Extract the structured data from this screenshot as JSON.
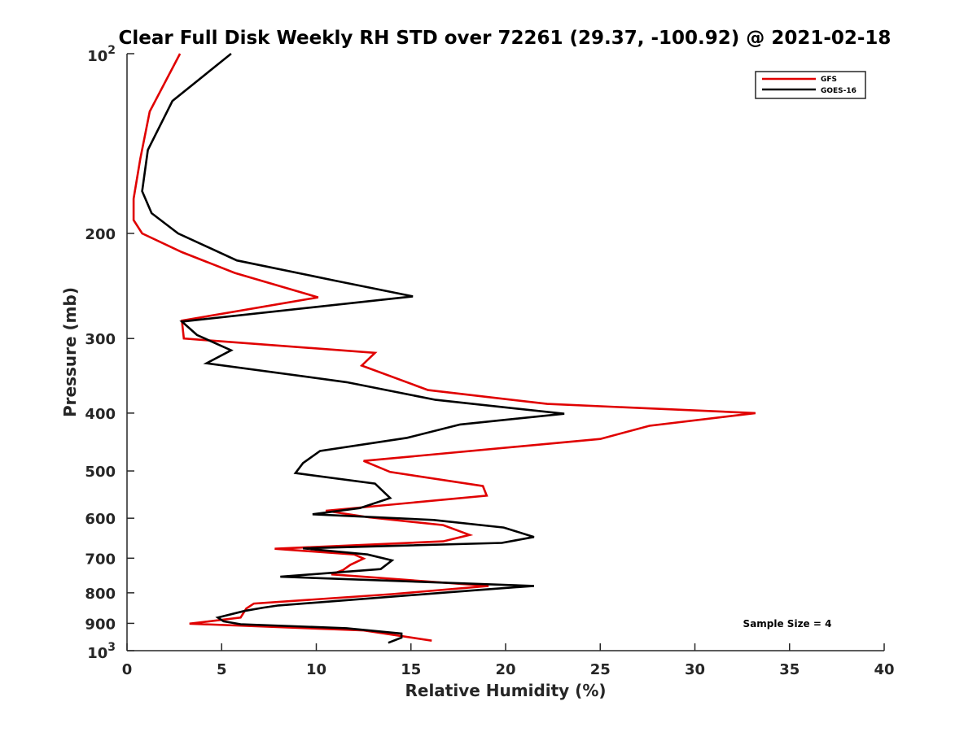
{
  "chart_data": {
    "type": "line",
    "title": "Clear Full Disk Weekly RH STD over 72261 (29.37, -100.92) @ 2021-02-18",
    "xlabel": "Relative Humidity (%)",
    "ylabel": "Pressure (mb)",
    "xlim": [
      0,
      40
    ],
    "ylim": [
      100,
      1000
    ],
    "yscale": "log",
    "y_reversed": true,
    "grid": false,
    "legend_position": "top-right",
    "x_ticks": [
      "0",
      "5",
      "10",
      "15",
      "20",
      "25",
      "30",
      "35",
      "40"
    ],
    "y_ticks": [
      {
        "value": 100,
        "base": "10",
        "exp": "2"
      },
      {
        "value": 200,
        "label": "200"
      },
      {
        "value": 300,
        "label": "300"
      },
      {
        "value": 400,
        "label": "400"
      },
      {
        "value": 500,
        "label": "500"
      },
      {
        "value": 600,
        "label": "600"
      },
      {
        "value": 700,
        "label": "700"
      },
      {
        "value": 800,
        "label": "800"
      },
      {
        "value": 900,
        "label": "900"
      },
      {
        "value": 1000,
        "base": "10",
        "exp": "3"
      }
    ],
    "annotation": "Sample Size = 4",
    "series": [
      {
        "name": "GFS",
        "color": "#e00000",
        "points": [
          [
            2.8,
            100
          ],
          [
            1.2,
            125
          ],
          [
            0.7,
            150
          ],
          [
            0.35,
            175
          ],
          [
            0.35,
            190
          ],
          [
            0.8,
            200
          ],
          [
            2.9,
            215
          ],
          [
            5.7,
            233
          ],
          [
            10.1,
            256
          ],
          [
            2.9,
            280
          ],
          [
            3.0,
            300
          ],
          [
            13.1,
            317
          ],
          [
            12.4,
            333
          ],
          [
            15.9,
            366
          ],
          [
            22.2,
            386
          ],
          [
            33.2,
            400
          ],
          [
            27.6,
            420
          ],
          [
            25.0,
            442
          ],
          [
            12.5,
            481
          ],
          [
            13.9,
            502
          ],
          [
            18.8,
            530
          ],
          [
            19.0,
            550
          ],
          [
            10.5,
            583
          ],
          [
            12.8,
            598
          ],
          [
            16.7,
            616
          ],
          [
            18.1,
            640
          ],
          [
            16.7,
            656
          ],
          [
            7.8,
            675
          ],
          [
            12.0,
            690
          ],
          [
            12.5,
            701
          ],
          [
            11.8,
            718
          ],
          [
            11.4,
            733
          ],
          [
            10.8,
            745
          ],
          [
            19.1,
            779
          ],
          [
            14.0,
            804
          ],
          [
            6.7,
            834
          ],
          [
            6.3,
            850
          ],
          [
            6.0,
            880
          ],
          [
            3.3,
            901
          ],
          [
            12.5,
            925
          ],
          [
            16.1,
            962
          ]
        ]
      },
      {
        "name": "GOES-16",
        "color": "#000000",
        "points": [
          [
            5.5,
            100
          ],
          [
            2.4,
            120
          ],
          [
            1.1,
            145
          ],
          [
            0.8,
            170
          ],
          [
            1.3,
            185
          ],
          [
            2.7,
            200
          ],
          [
            5.8,
            222
          ],
          [
            11.0,
            240
          ],
          [
            15.1,
            255
          ],
          [
            2.9,
            281
          ],
          [
            3.7,
            296
          ],
          [
            5.5,
            314
          ],
          [
            4.2,
            330
          ],
          [
            11.6,
            355
          ],
          [
            16.3,
            380
          ],
          [
            23.1,
            401
          ],
          [
            17.6,
            418
          ],
          [
            14.8,
            440
          ],
          [
            10.2,
            463
          ],
          [
            9.3,
            485
          ],
          [
            8.9,
            504
          ],
          [
            13.1,
            525
          ],
          [
            13.9,
            555
          ],
          [
            12.3,
            577
          ],
          [
            9.8,
            591
          ],
          [
            16.2,
            604
          ],
          [
            19.9,
            622
          ],
          [
            21.5,
            645
          ],
          [
            19.8,
            660
          ],
          [
            9.3,
            674
          ],
          [
            12.7,
            690
          ],
          [
            14.0,
            706
          ],
          [
            13.4,
            730
          ],
          [
            8.1,
            752
          ],
          [
            21.5,
            779
          ],
          [
            18.4,
            792
          ],
          [
            8.0,
            840
          ],
          [
            7.2,
            847
          ],
          [
            6.2,
            858
          ],
          [
            4.8,
            880
          ],
          [
            5.1,
            893
          ],
          [
            6.0,
            903
          ],
          [
            11.6,
            917
          ],
          [
            14.5,
            936
          ],
          [
            14.5,
            951
          ],
          [
            13.8,
            970
          ]
        ]
      }
    ]
  }
}
